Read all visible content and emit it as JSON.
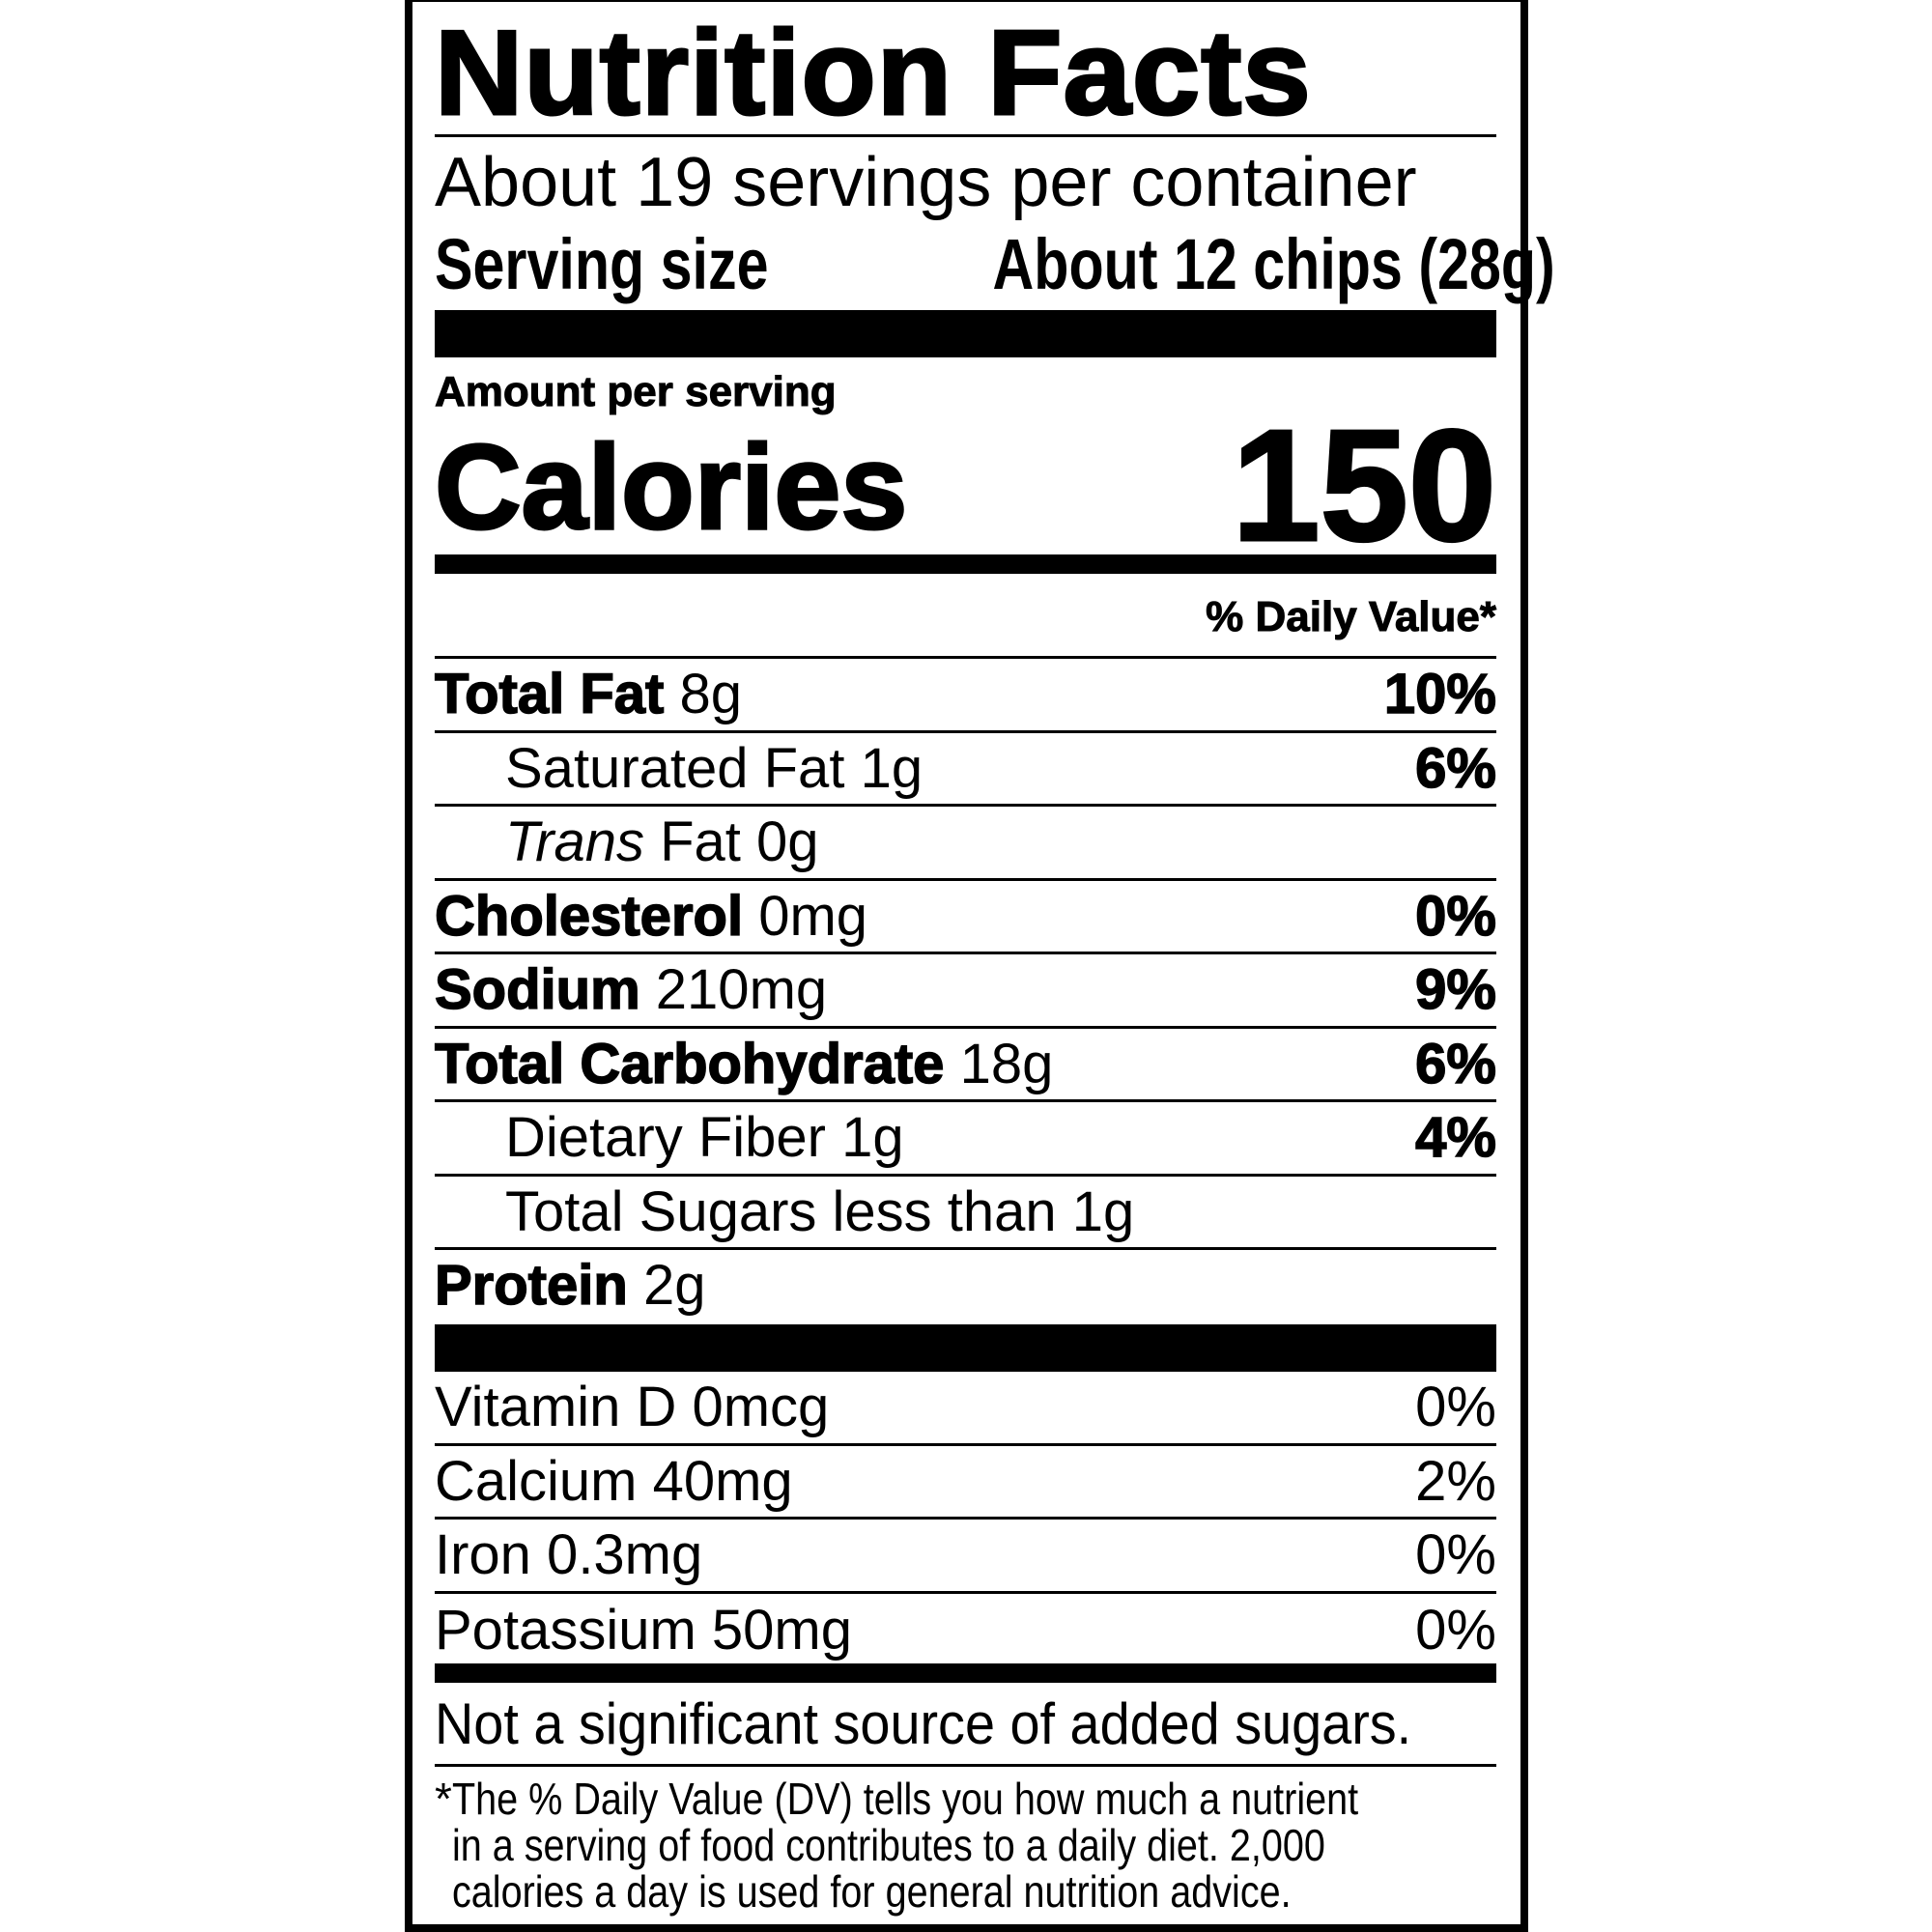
{
  "title": "Nutrition Facts",
  "servings_per_container": "About 19 servings per container",
  "serving_size_label": "Serving size",
  "serving_size_value": "About 12 chips (28g)",
  "amount_per_serving": "Amount per serving",
  "calories_label": "Calories",
  "calories_value": "150",
  "dv_header": "% Daily Value*",
  "nutrients": [
    {
      "name": "Total Fat",
      "amount": "8g",
      "dv": "10%"
    },
    {
      "name": "Saturated Fat",
      "amount": "1g",
      "dv": "6%"
    },
    {
      "name_italic": "Trans",
      "name": "Fat",
      "amount": "0g",
      "dv": ""
    },
    {
      "name": "Cholesterol",
      "amount": "0mg",
      "dv": "0%"
    },
    {
      "name": "Sodium",
      "amount": "210mg",
      "dv": "9%"
    },
    {
      "name": "Total Carbohydrate",
      "amount": "18g",
      "dv": "6%"
    },
    {
      "name": "Dietary Fiber",
      "amount": "1g",
      "dv": "4%"
    },
    {
      "name": "Total Sugars",
      "amount": "less than 1g",
      "dv": ""
    },
    {
      "name": "Protein",
      "amount": "2g",
      "dv": ""
    }
  ],
  "vitamins": [
    {
      "label": "Vitamin D 0mcg",
      "dv": "0%"
    },
    {
      "label": "Calcium 40mg",
      "dv": "2%"
    },
    {
      "label": "Iron 0.3mg",
      "dv": "0%"
    },
    {
      "label": "Potassium 50mg",
      "dv": "0%"
    }
  ],
  "added_sugars_note": "Not a significant source of added sugars.",
  "footnote_marker": "*",
  "footnote_lines": [
    "The % Daily Value (DV) tells you how much a nutrient",
    "in a serving of food contributes to a daily diet. 2,000",
    "calories a day is used for general nutrition advice."
  ]
}
